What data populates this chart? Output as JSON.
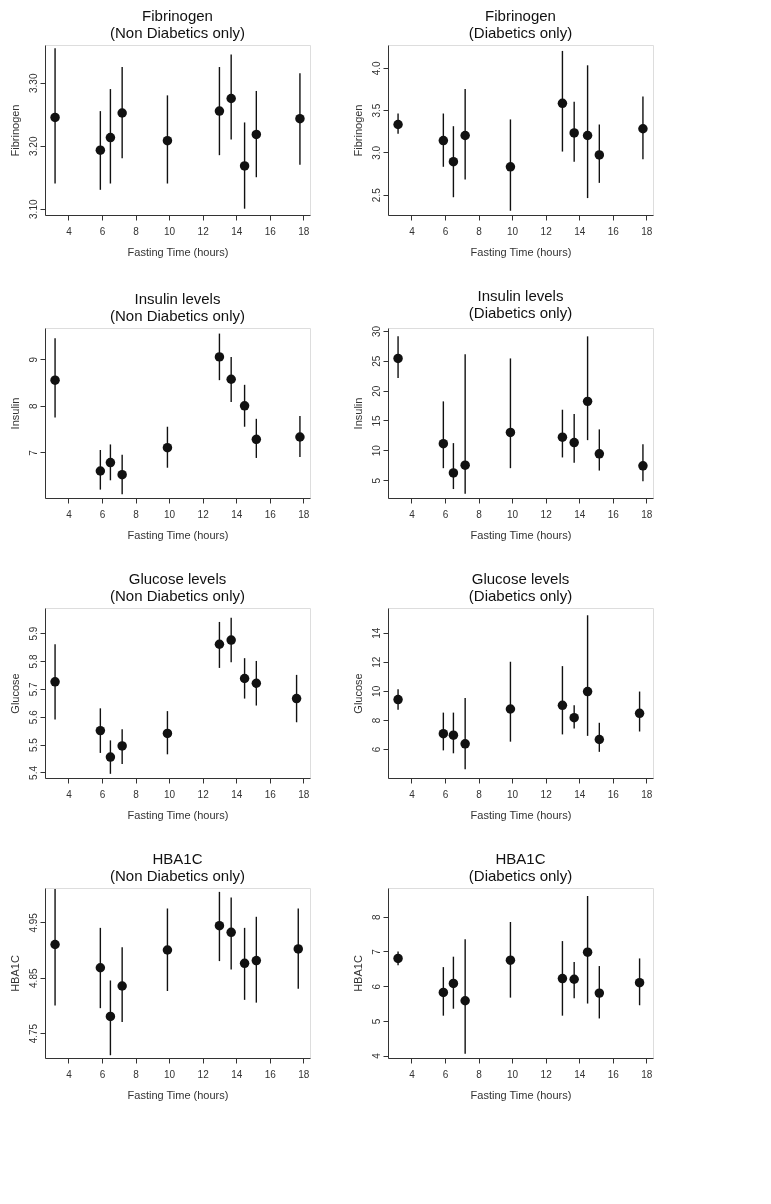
{
  "chart_data": [
    {
      "type": "scatter",
      "title": "Fibrinogen",
      "subtitle": "(Non Diabetics only)",
      "xlabel": "Fasting Time (hours)",
      "ylabel": "Fibrinogen",
      "marker": "circle",
      "x": [
        3.2,
        5.9,
        6.5,
        7.2,
        9.9,
        13.0,
        13.7,
        14.5,
        15.2,
        17.8
      ],
      "xlim": [
        2.6,
        18.4
      ],
      "xticks": [
        4,
        6,
        8,
        10,
        12,
        14,
        16,
        18
      ],
      "ylim": [
        3.09,
        3.36
      ],
      "yticks": [
        {
          "value": 3.1,
          "label": "3.10"
        },
        {
          "value": 3.2,
          "label": "3.20"
        },
        {
          "value": 3.3,
          "label": "3.30"
        }
      ],
      "series": [
        {
          "color": "#111111",
          "values": [
            3.245,
            3.193,
            3.213,
            3.252,
            3.208,
            3.255,
            3.275,
            3.168,
            3.218,
            3.243
          ],
          "errors": [
            [
              3.14,
              3.355
            ],
            [
              3.13,
              3.255
            ],
            [
              3.14,
              3.29
            ],
            [
              3.18,
              3.325
            ],
            [
              3.14,
              3.28
            ],
            [
              3.185,
              3.325
            ],
            [
              3.21,
              3.345
            ],
            [
              3.1,
              3.237
            ],
            [
              3.15,
              3.287
            ],
            [
              3.17,
              3.315
            ]
          ]
        }
      ]
    },
    {
      "type": "scatter",
      "title": "Fibrinogen",
      "subtitle": "(Diabetics only)",
      "xlabel": "Fasting Time (hours)",
      "ylabel": "Fibrinogen",
      "marker": "circle",
      "x": [
        3.2,
        5.9,
        6.5,
        7.2,
        9.9,
        13.0,
        13.7,
        14.5,
        15.2,
        17.8
      ],
      "xlim": [
        2.6,
        18.4
      ],
      "xticks": [
        4,
        6,
        8,
        10,
        12,
        14,
        16,
        18
      ],
      "ylim": [
        2.26,
        4.27
      ],
      "yticks": [
        2.5,
        {
          "value": 3.0,
          "label": "3.0"
        },
        3.5,
        {
          "value": 4.0,
          "label": "4.0"
        }
      ],
      "series": [
        {
          "color": "#111111",
          "values": [
            3.33,
            3.14,
            2.89,
            3.2,
            2.83,
            3.58,
            3.23,
            3.2,
            2.97,
            3.28
          ],
          "errors": [
            [
              3.22,
              3.46
            ],
            [
              2.83,
              3.46
            ],
            [
              2.47,
              3.31
            ],
            [
              2.68,
              3.75
            ],
            [
              2.31,
              3.39
            ],
            [
              3.01,
              4.2
            ],
            [
              2.89,
              3.6
            ],
            [
              2.46,
              4.03
            ],
            [
              2.64,
              3.33
            ],
            [
              2.92,
              3.66
            ]
          ]
        }
      ]
    },
    {
      "type": "scatter",
      "title": "Insulin levels",
      "subtitle": "(Non Diabetics only)",
      "xlabel": "Fasting Time (hours)",
      "ylabel": "Insulin",
      "marker": "circle",
      "x": [
        3.2,
        5.9,
        6.5,
        7.2,
        9.9,
        13.0,
        13.7,
        14.5,
        15.2,
        17.8
      ],
      "xlim": [
        2.6,
        18.4
      ],
      "xticks": [
        4,
        6,
        8,
        10,
        12,
        14,
        16,
        18
      ],
      "ylim": [
        6.02,
        9.67
      ],
      "yticks": [
        7,
        8,
        9
      ],
      "series": [
        {
          "color": "#111111",
          "values": [
            8.55,
            6.6,
            6.78,
            6.52,
            7.1,
            9.05,
            8.57,
            8.0,
            7.28,
            7.33
          ],
          "errors": [
            [
              7.75,
              9.45
            ],
            [
              6.2,
              7.05
            ],
            [
              6.4,
              7.17
            ],
            [
              6.1,
              6.95
            ],
            [
              6.67,
              7.55
            ],
            [
              8.55,
              9.55
            ],
            [
              8.08,
              9.05
            ],
            [
              7.55,
              8.45
            ],
            [
              6.88,
              7.72
            ],
            [
              6.9,
              7.78
            ]
          ]
        }
      ]
    },
    {
      "type": "scatter",
      "title": "Insulin levels",
      "subtitle": "(Diabetics only)",
      "xlabel": "Fasting Time (hours)",
      "ylabel": "Insulin",
      "marker": "circle",
      "x": [
        3.2,
        5.9,
        6.5,
        7.2,
        9.9,
        13.0,
        13.7,
        14.5,
        15.2,
        17.8
      ],
      "xlim": [
        2.6,
        18.4
      ],
      "xticks": [
        4,
        6,
        8,
        10,
        12,
        14,
        16,
        18
      ],
      "ylim": [
        2,
        30.5
      ],
      "yticks": [
        5,
        10,
        15,
        20,
        25,
        30
      ],
      "series": [
        {
          "color": "#111111",
          "values": [
            25.4,
            11.1,
            6.2,
            7.5,
            13.0,
            12.2,
            11.3,
            18.2,
            9.4,
            7.4
          ],
          "errors": [
            [
              22.1,
              29.1
            ],
            [
              7,
              18.2
            ],
            [
              3.5,
              11.2
            ],
            [
              2.7,
              26.1
            ],
            [
              7,
              25.4
            ],
            [
              8.8,
              16.8
            ],
            [
              7.9,
              16.1
            ],
            [
              11.7,
              29.1
            ],
            [
              6.6,
              13.5
            ],
            [
              4.8,
              11
            ]
          ]
        }
      ]
    },
    {
      "type": "scatter",
      "title": "Glucose levels",
      "subtitle": "(Non Diabetics only)",
      "xlabel": "Fasting Time (hours)",
      "ylabel": "Glucose",
      "marker": "circle",
      "x": [
        3.2,
        5.9,
        6.5,
        7.2,
        9.9,
        13.0,
        13.7,
        14.5,
        15.2,
        17.6
      ],
      "xlim": [
        2.6,
        18.4
      ],
      "xticks": [
        4,
        6,
        8,
        10,
        12,
        14,
        16,
        18
      ],
      "ylim": [
        5.38,
        5.99
      ],
      "yticks": [
        5.4,
        5.5,
        5.6,
        5.7,
        5.8,
        5.9
      ],
      "series": [
        {
          "color": "#111111",
          "values": [
            5.725,
            5.55,
            5.455,
            5.495,
            5.54,
            5.86,
            5.875,
            5.737,
            5.72,
            5.665
          ],
          "errors": [
            [
              5.59,
              5.86
            ],
            [
              5.47,
              5.63
            ],
            [
              5.395,
              5.515
            ],
            [
              5.43,
              5.555
            ],
            [
              5.465,
              5.62
            ],
            [
              5.775,
              5.94
            ],
            [
              5.795,
              5.955
            ],
            [
              5.665,
              5.81
            ],
            [
              5.64,
              5.8
            ],
            [
              5.58,
              5.75
            ]
          ]
        }
      ]
    },
    {
      "type": "scatter",
      "title": "Glucose levels",
      "subtitle": "(Diabetics only)",
      "xlabel": "Fasting Time (hours)",
      "ylabel": "Glucose",
      "marker": "circle",
      "x": [
        3.2,
        5.9,
        6.5,
        7.2,
        9.9,
        13.0,
        13.7,
        14.5,
        15.2,
        17.6
      ],
      "xlim": [
        2.6,
        18.4
      ],
      "xticks": [
        4,
        6,
        8,
        10,
        12,
        14,
        16,
        18
      ],
      "ylim": [
        4.0,
        15.7
      ],
      "yticks": [
        6,
        8,
        10,
        12,
        14
      ],
      "series": [
        {
          "color": "#111111",
          "values": [
            9.4,
            7.05,
            6.95,
            6.35,
            8.75,
            9.0,
            8.15,
            9.95,
            6.65,
            8.45
          ],
          "errors": [
            [
              8.7,
              10.1
            ],
            [
              5.9,
              8.5
            ],
            [
              5.7,
              8.5
            ],
            [
              4.6,
              9.5
            ],
            [
              6.5,
              12.0
            ],
            [
              7.0,
              11.7
            ],
            [
              7.4,
              9.0
            ],
            [
              6.9,
              15.2
            ],
            [
              5.8,
              7.8
            ],
            [
              7.2,
              9.95
            ]
          ]
        }
      ]
    },
    {
      "type": "scatter",
      "title": "HBA1C",
      "subtitle": "(Non Diabetics only)",
      "xlabel": "Fasting Time (hours)",
      "ylabel": "HBA1C",
      "marker": "circle",
      "x": [
        3.2,
        5.9,
        6.5,
        7.2,
        9.9,
        13.0,
        13.7,
        14.5,
        15.2,
        17.7
      ],
      "xlim": [
        2.6,
        18.4
      ],
      "xticks": [
        4,
        6,
        8,
        10,
        12,
        14,
        16,
        18
      ],
      "ylim": [
        4.705,
        5.012
      ],
      "yticks": [
        4.75,
        4.85,
        4.95
      ],
      "series": [
        {
          "color": "#111111",
          "values": [
            4.91,
            4.868,
            4.78,
            4.835,
            4.9,
            4.944,
            4.932,
            4.876,
            4.881,
            4.902
          ],
          "errors": [
            [
              4.8,
              5.01
            ],
            [
              4.795,
              4.94
            ],
            [
              4.71,
              4.845
            ],
            [
              4.77,
              4.905
            ],
            [
              4.826,
              4.975
            ],
            [
              4.88,
              5.005
            ],
            [
              4.865,
              4.995
            ],
            [
              4.81,
              4.94
            ],
            [
              4.805,
              4.96
            ],
            [
              4.83,
              4.975
            ]
          ]
        }
      ]
    },
    {
      "type": "scatter",
      "title": "HBA1C",
      "subtitle": "(Diabetics only)",
      "xlabel": "Fasting Time (hours)",
      "ylabel": "HBA1C",
      "marker": "circle",
      "x": [
        3.2,
        5.9,
        6.5,
        7.2,
        9.9,
        13.0,
        13.7,
        14.5,
        15.2,
        17.6
      ],
      "xlim": [
        2.6,
        18.4
      ],
      "xticks": [
        4,
        6,
        8,
        10,
        12,
        14,
        16,
        18
      ],
      "ylim": [
        3.93,
        8.83
      ],
      "yticks": [
        4,
        5,
        6,
        7,
        8
      ],
      "series": [
        {
          "color": "#111111",
          "values": [
            6.8,
            5.82,
            6.08,
            5.58,
            6.75,
            6.22,
            6.2,
            6.98,
            5.8,
            6.1
          ],
          "errors": [
            [
              6.6,
              7.0
            ],
            [
              5.15,
              6.55
            ],
            [
              5.35,
              6.85
            ],
            [
              4.05,
              7.35
            ],
            [
              5.67,
              7.85
            ],
            [
              5.15,
              7.3
            ],
            [
              5.65,
              6.7
            ],
            [
              5.5,
              8.6
            ],
            [
              5.07,
              6.58
            ],
            [
              5.45,
              6.8
            ]
          ]
        }
      ]
    }
  ]
}
